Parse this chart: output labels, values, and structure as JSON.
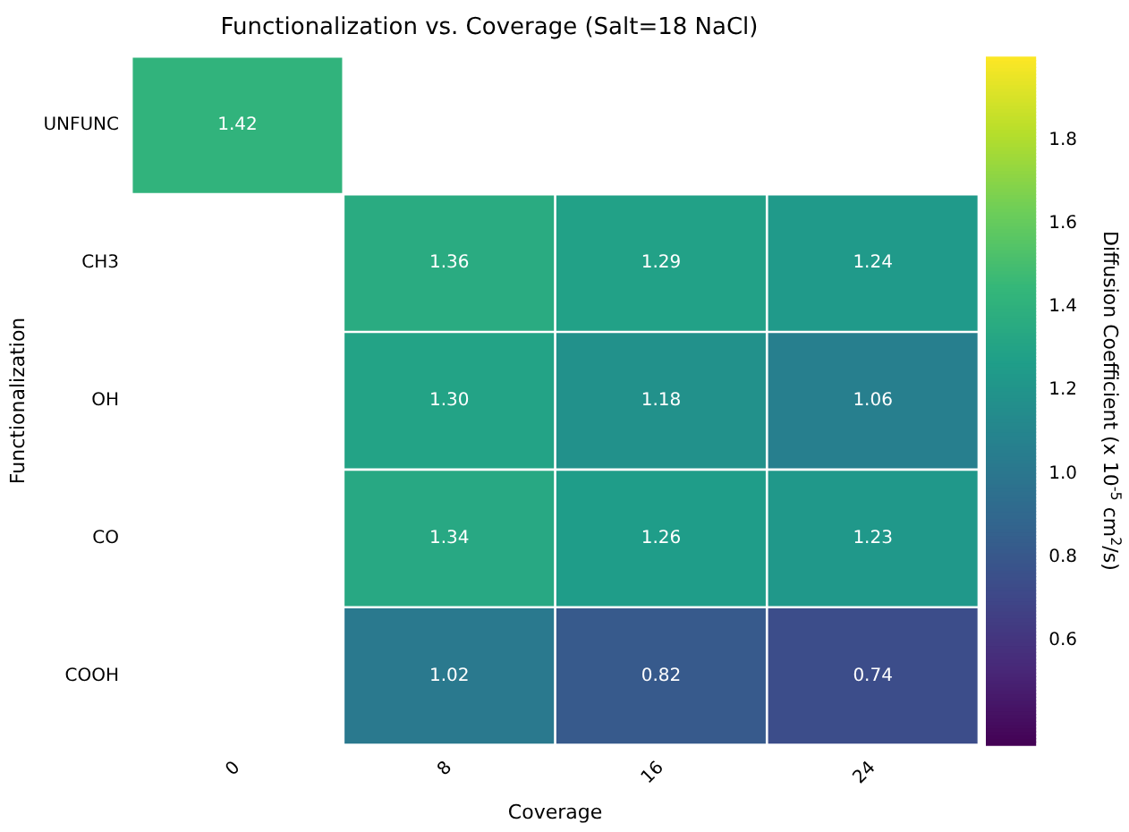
{
  "chart_data": {
    "type": "heatmap",
    "title": "Functionalization vs. Coverage (Salt=18 NaCl)",
    "xlabel": "Coverage",
    "ylabel": "Functionalization",
    "clabel": "Diffusion Coefficient (x 10$^{-5}$ cm$^{2}$/s)",
    "categories": [
      "0",
      "8",
      "16",
      "24"
    ],
    "y_categories": [
      "UNFUNC",
      "CH3",
      "OH",
      "CO",
      "COOH"
    ],
    "cells": [
      [
        1.42,
        null,
        null,
        null
      ],
      [
        null,
        1.36,
        1.29,
        1.24
      ],
      [
        null,
        1.3,
        1.18,
        1.06
      ],
      [
        null,
        1.34,
        1.26,
        1.23
      ],
      [
        null,
        1.02,
        0.82,
        0.74
      ]
    ],
    "cell_labels": [
      [
        "1.42",
        null,
        null,
        null
      ],
      [
        null,
        "1.36",
        "1.29",
        "1.24"
      ],
      [
        null,
        "1.30",
        "1.18",
        "1.06"
      ],
      [
        null,
        "1.34",
        "1.26",
        "1.23"
      ],
      [
        null,
        "1.02",
        "0.82",
        "0.74"
      ]
    ],
    "clim": [
      0.35,
      2.0
    ],
    "cticks": [
      0.6,
      0.8,
      {
        "value": 1.0,
        "label": "1.0"
      },
      1.2,
      1.4,
      1.6,
      1.8
    ]
  }
}
